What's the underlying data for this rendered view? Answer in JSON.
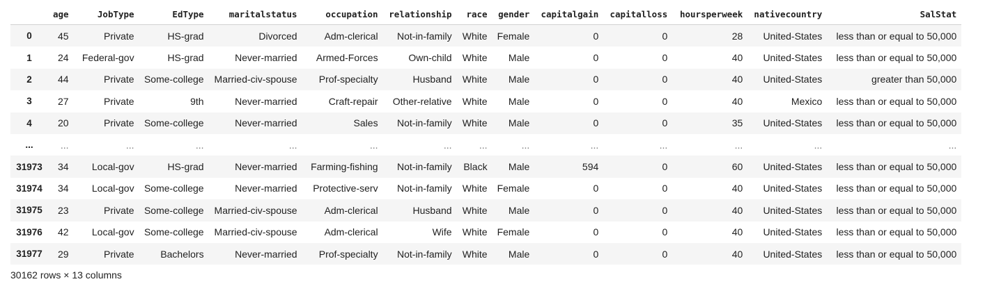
{
  "columns": [
    "",
    "age",
    "JobType",
    "EdType",
    "maritalstatus",
    "occupation",
    "relationship",
    "race",
    "gender",
    "capitalgain",
    "capitalloss",
    "hoursperweek",
    "nativecountry",
    "SalStat"
  ],
  "rows": [
    [
      "0",
      "45",
      "Private",
      "HS-grad",
      "Divorced",
      "Adm-clerical",
      "Not-in-family",
      "White",
      "Female",
      "0",
      "0",
      "28",
      "United-States",
      "less than or equal to 50,000"
    ],
    [
      "1",
      "24",
      "Federal-gov",
      "HS-grad",
      "Never-married",
      "Armed-Forces",
      "Own-child",
      "White",
      "Male",
      "0",
      "0",
      "40",
      "United-States",
      "less than or equal to 50,000"
    ],
    [
      "2",
      "44",
      "Private",
      "Some-college",
      "Married-civ-spouse",
      "Prof-specialty",
      "Husband",
      "White",
      "Male",
      "0",
      "0",
      "40",
      "United-States",
      "greater than 50,000"
    ],
    [
      "3",
      "27",
      "Private",
      "9th",
      "Never-married",
      "Craft-repair",
      "Other-relative",
      "White",
      "Male",
      "0",
      "0",
      "40",
      "Mexico",
      "less than or equal to 50,000"
    ],
    [
      "4",
      "20",
      "Private",
      "Some-college",
      "Never-married",
      "Sales",
      "Not-in-family",
      "White",
      "Male",
      "0",
      "0",
      "35",
      "United-States",
      "less than or equal to 50,000"
    ],
    [
      "...",
      "...",
      "...",
      "...",
      "...",
      "...",
      "...",
      "...",
      "...",
      "...",
      "...",
      "...",
      "...",
      "..."
    ],
    [
      "31973",
      "34",
      "Local-gov",
      "HS-grad",
      "Never-married",
      "Farming-fishing",
      "Not-in-family",
      "Black",
      "Male",
      "594",
      "0",
      "60",
      "United-States",
      "less than or equal to 50,000"
    ],
    [
      "31974",
      "34",
      "Local-gov",
      "Some-college",
      "Never-married",
      "Protective-serv",
      "Not-in-family",
      "White",
      "Female",
      "0",
      "0",
      "40",
      "United-States",
      "less than or equal to 50,000"
    ],
    [
      "31975",
      "23",
      "Private",
      "Some-college",
      "Married-civ-spouse",
      "Adm-clerical",
      "Husband",
      "White",
      "Male",
      "0",
      "0",
      "40",
      "United-States",
      "less than or equal to 50,000"
    ],
    [
      "31976",
      "42",
      "Local-gov",
      "Some-college",
      "Married-civ-spouse",
      "Adm-clerical",
      "Wife",
      "White",
      "Female",
      "0",
      "0",
      "40",
      "United-States",
      "less than or equal to 50,000"
    ],
    [
      "31977",
      "29",
      "Private",
      "Bachelors",
      "Never-married",
      "Prof-specialty",
      "Not-in-family",
      "White",
      "Male",
      "0",
      "0",
      "40",
      "United-States",
      "less than or equal to 50,000"
    ]
  ],
  "footer": "30162 rows × 13 columns"
}
